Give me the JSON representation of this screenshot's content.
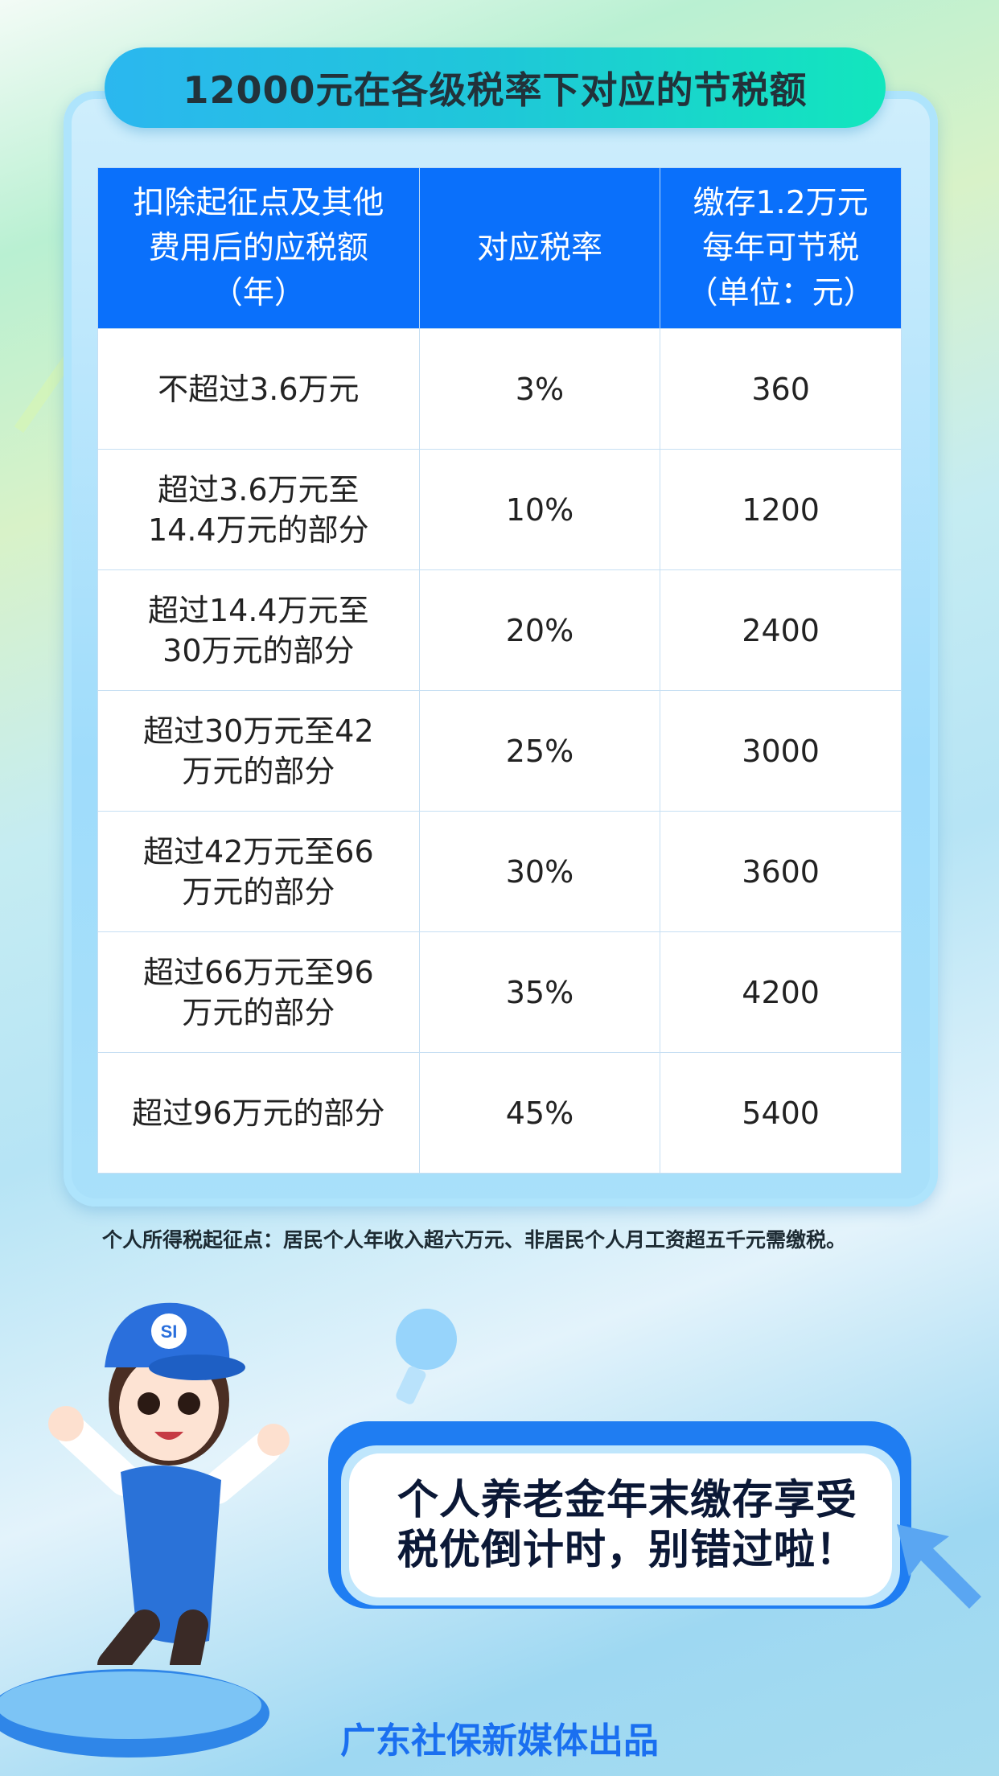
{
  "title": "12000元在各级税率下对应的节税额",
  "table": {
    "headers": [
      "扣除起征点及其他费用后的应税额（年）",
      "对应税率",
      "缴存1.2万元每年可节税（单位：元）"
    ],
    "rows": [
      [
        "不超过3.6万元",
        "3%",
        "360"
      ],
      [
        "超过3.6万元至14.4万元的部分",
        "10%",
        "1200"
      ],
      [
        "超过14.4万元至30万元的部分",
        "20%",
        "2400"
      ],
      [
        "超过30万元至42万元的部分",
        "25%",
        "3000"
      ],
      [
        "超过42万元至66万元的部分",
        "30%",
        "3600"
      ],
      [
        "超过66万元至96万元的部分",
        "35%",
        "4200"
      ],
      [
        "超过96万元的部分",
        "45%",
        "5400"
      ]
    ]
  },
  "note": "个人所得税起征点：居民个人年收入超六万元、非居民个人月工资超五千元需缴税。",
  "bubble_text": "个人养老金年末缴存享受税优倒计时，别错过啦！",
  "mascot_logo": "SI",
  "footer": "广东社保新媒体出品",
  "colors": {
    "header_blue": "#0a70fb",
    "footer_blue": "#1a6ff0",
    "title_gradient_start": "#2bb7ef",
    "title_gradient_end": "#12e6bd"
  }
}
